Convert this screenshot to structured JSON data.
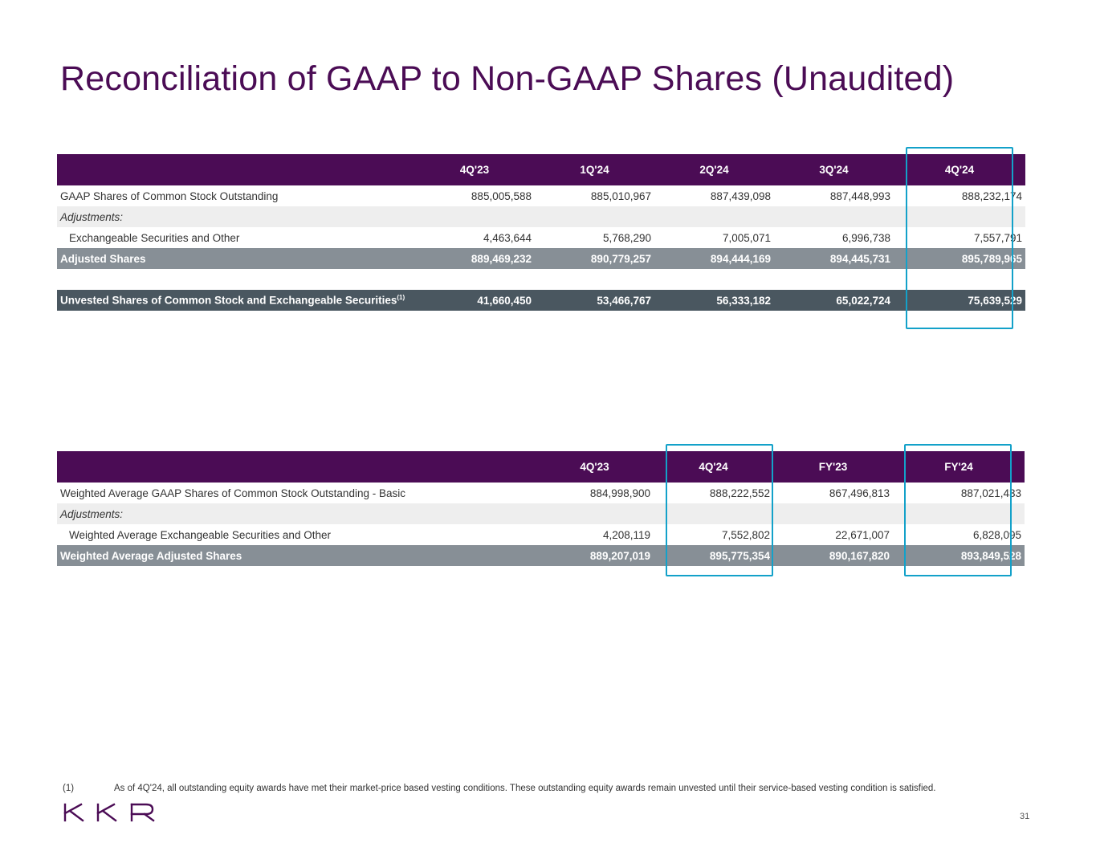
{
  "title": "Reconciliation of GAAP to Non-GAAP Shares (Unaudited)",
  "table1": {
    "columns": [
      "4Q'23",
      "1Q'24",
      "2Q'24",
      "3Q'24",
      "4Q'24"
    ],
    "gaap_label": "GAAP Shares of Common Stock Outstanding",
    "gaap_values": [
      "885,005,588",
      "885,010,967",
      "887,439,098",
      "887,448,993",
      "888,232,174"
    ],
    "adjustments_label": "Adjustments:",
    "exch_label": "Exchangeable Securities and Other",
    "exch_values": [
      "4,463,644",
      "5,768,290",
      "7,005,071",
      "6,996,738",
      "7,557,791"
    ],
    "adjusted_label": "Adjusted Shares",
    "adjusted_values": [
      "889,469,232",
      "890,779,257",
      "894,444,169",
      "894,445,731",
      "895,789,965"
    ],
    "unvested_label": "Unvested Shares of Common Stock and Exchangeable Securities",
    "unvested_sup": "(1)",
    "unvested_values": [
      "41,660,450",
      "53,466,767",
      "56,333,182",
      "65,022,724",
      "75,639,529"
    ]
  },
  "table2": {
    "columns": [
      "4Q'23",
      "4Q'24",
      "FY'23",
      "FY'24"
    ],
    "wa_gaap_label": "Weighted Average GAAP Shares of Common Stock Outstanding - Basic",
    "wa_gaap_values": [
      "884,998,900",
      "888,222,552",
      "867,496,813",
      "887,021,433"
    ],
    "adjustments_label": "Adjustments:",
    "wa_exch_label": "Weighted Average Exchangeable Securities and Other",
    "wa_exch_values": [
      "4,208,119",
      "7,552,802",
      "22,671,007",
      "6,828,095"
    ],
    "wa_adjusted_label": "Weighted Average Adjusted Shares",
    "wa_adjusted_values": [
      "889,207,019",
      "895,775,354",
      "890,167,820",
      "893,849,528"
    ]
  },
  "footnote": {
    "marker": "(1)",
    "text": "As of 4Q'24, all outstanding equity awards have met their market-price based vesting conditions. These outstanding equity awards remain unvested until their service-based vesting condition is satisfied."
  },
  "logo_text": "KKR",
  "page_number": "31",
  "colors": {
    "brand_purple": "#4b0c55",
    "highlight": "#13a1c9",
    "gray_row": "#878f96",
    "dark_row": "#4a5760"
  }
}
